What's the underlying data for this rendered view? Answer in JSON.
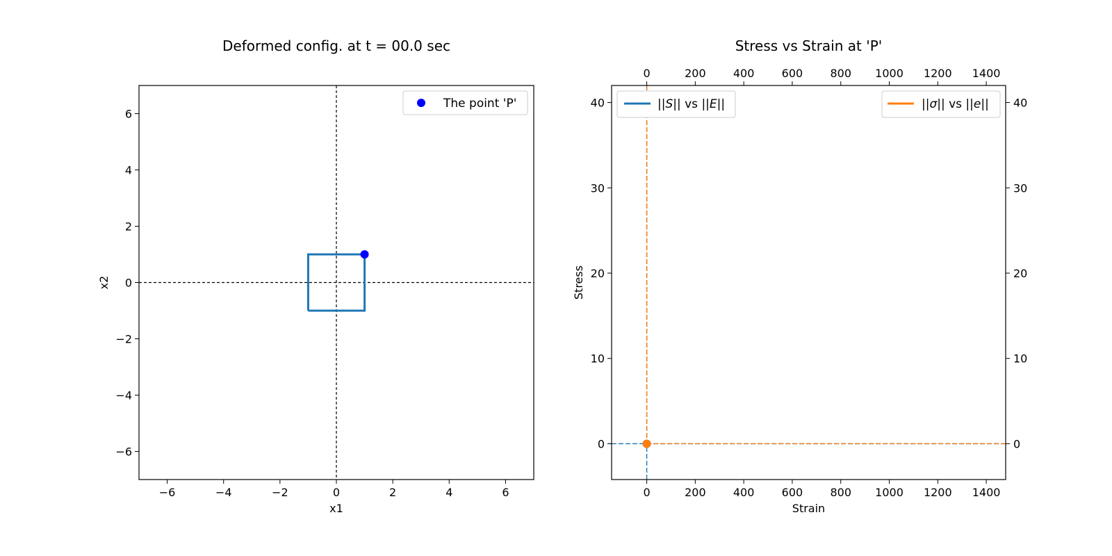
{
  "chart_data": [
    {
      "type": "line",
      "title": "Deformed config. at t = 00.0 sec",
      "xlabel": "x1",
      "ylabel": "x2",
      "xlim": [
        -7,
        7
      ],
      "ylim": [
        -7,
        7
      ],
      "xticks": [
        -6,
        -4,
        -2,
        0,
        2,
        4,
        6
      ],
      "yticks": [
        -6,
        -4,
        -2,
        0,
        2,
        4,
        6
      ],
      "xtick_labels": [
        "−6",
        "−4",
        "−2",
        "0",
        "2",
        "4",
        "6"
      ],
      "ytick_labels": [
        "−6",
        "−4",
        "−2",
        "0",
        "2",
        "4",
        "6"
      ],
      "reference_lines": {
        "x": 0,
        "y": 0,
        "style": "dashed",
        "color": "#000000"
      },
      "series": [
        {
          "kind": "polygon",
          "color": "#1f77b4",
          "x": [
            -1,
            1,
            1,
            -1,
            -1
          ],
          "y": [
            -1,
            -1,
            1,
            1,
            -1
          ]
        },
        {
          "kind": "point",
          "name": "The point 'P'",
          "color": "#0000ff",
          "x": [
            1
          ],
          "y": [
            1
          ]
        }
      ],
      "legend": {
        "placement": "top-right",
        "entries": [
          "The point 'P'"
        ]
      }
    },
    {
      "type": "line",
      "title": "Stress vs Strain at 'P'",
      "xlabel": "Strain",
      "ylabel": "Stress",
      "xlim": [
        -145,
        1480
      ],
      "ylim": [
        -4.2,
        42
      ],
      "xticks": [
        0,
        200,
        400,
        600,
        800,
        1000,
        1200,
        1400
      ],
      "yticks": [
        0,
        10,
        20,
        30,
        40
      ],
      "xtick_labels": [
        "0",
        "200",
        "400",
        "600",
        "800",
        "1000",
        "1200",
        "1400"
      ],
      "ytick_labels": [
        "0",
        "10",
        "20",
        "30",
        "40"
      ],
      "top_xticks": [
        0,
        200,
        400,
        600,
        800,
        1000,
        1200,
        1400
      ],
      "top_xtick_labels": [
        "0",
        "200",
        "400",
        "600",
        "800",
        "1000",
        "1200",
        "1400"
      ],
      "right_yticks": [
        0,
        10,
        20,
        30,
        40
      ],
      "right_ytick_labels": [
        "0",
        "10",
        "20",
        "30",
        "40"
      ],
      "reference_lines": {
        "x": 0,
        "y": 0,
        "style": "dashed"
      },
      "series": [
        {
          "name": "||S|| vs ||E||",
          "name_parts": [
            "||",
            "S",
            "|| vs ||",
            "E",
            "||"
          ],
          "color": "#1f77b4",
          "x": [
            0
          ],
          "y": [
            0
          ]
        },
        {
          "name": "||σ|| vs ||e||",
          "name_parts": [
            "||",
            "σ",
            "|| vs ||",
            "e",
            "||"
          ],
          "color": "#ff7f0e",
          "x": [
            0
          ],
          "y": [
            0
          ]
        }
      ],
      "legend": [
        {
          "placement": "top-left",
          "entries": [
            "||S|| vs ||E||"
          ]
        },
        {
          "placement": "top-right",
          "entries": [
            "||σ|| vs ||e||"
          ]
        }
      ]
    }
  ]
}
